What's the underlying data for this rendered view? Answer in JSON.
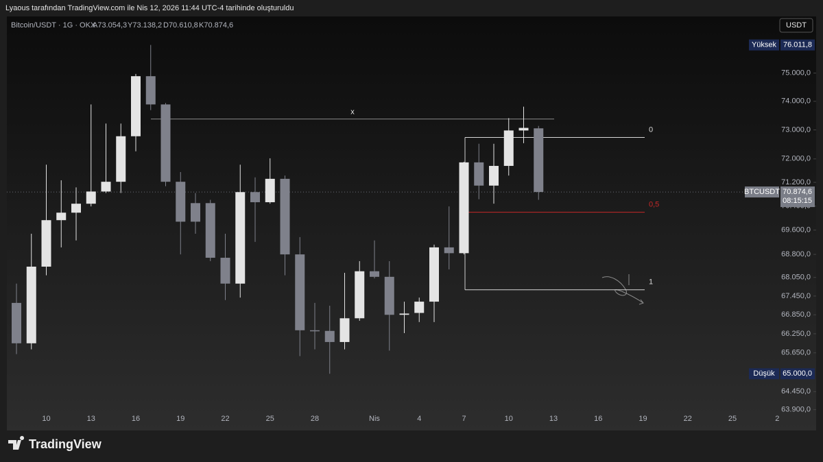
{
  "header": {
    "caption": "Lyaous tarafından TradingView.com ile Nis 12, 2026 11:44 UTC-4 tarihinde oluşturuldu"
  },
  "chart_data": {
    "type": "candlestick",
    "legend": {
      "symbol": "Bitcoin/USDT · 1G · OKX",
      "open_label": "A73.054,3",
      "high_label": "Y73.138,2",
      "low_label": "D70.610,8",
      "close_label": "K70.874,6"
    },
    "currency": "USDT",
    "categories": [
      null,
      null,
      "10",
      null,
      null,
      "13",
      null,
      null,
      "16",
      null,
      null,
      "19",
      null,
      null,
      "22",
      null,
      null,
      "25",
      null,
      null,
      "28",
      null,
      null,
      null,
      "Nis",
      null,
      null,
      "4",
      null,
      null,
      "7",
      null,
      null,
      "10",
      null,
      null,
      "13",
      null,
      null,
      "16",
      null,
      null,
      "19",
      null,
      null,
      "22",
      null,
      null,
      "25",
      null,
      null,
      "2"
    ],
    "open": [
      67230,
      65950,
      68400,
      69930,
      70180,
      70480,
      70890,
      71220,
      72780,
      74890,
      73890,
      71220,
      70500,
      70500,
      68690,
      67850,
      70870,
      70530,
      71320,
      68800,
      66360,
      66340,
      65990,
      66740,
      68250,
      68070,
      66850,
      66910,
      67270,
      69030,
      68840,
      71880,
      71090,
      71760,
      72980,
      73054.3,
      null,
      null,
      null,
      null,
      null,
      null,
      null,
      null,
      null,
      null,
      null,
      null,
      null,
      null,
      null,
      null
    ],
    "high": [
      67850,
      69480,
      71800,
      71270,
      71030,
      73890,
      73220,
      73220,
      74970,
      76011.8,
      73940,
      71550,
      70840,
      70610,
      69480,
      71800,
      71370,
      72020,
      71430,
      69370,
      67230,
      67140,
      68200,
      68580,
      69260,
      68580,
      67270,
      67400,
      69120,
      70390,
      71900,
      72520,
      72520,
      73410,
      73810,
      73138.2,
      null,
      null,
      null,
      null,
      null,
      null,
      null,
      null,
      null,
      null,
      null,
      null,
      null,
      null,
      null,
      null
    ],
    "low": [
      65610,
      65760,
      68120,
      69030,
      69260,
      70390,
      70840,
      70840,
      72260,
      73690,
      71070,
      68800,
      69480,
      68580,
      67320,
      67400,
      69210,
      70480,
      68120,
      65550,
      65760,
      65000,
      65760,
      66660,
      68020,
      65720,
      66270,
      66620,
      66620,
      68310,
      68800,
      70630,
      70480,
      71430,
      72540,
      70610.8,
      null,
      null,
      null,
      null,
      null,
      null,
      null,
      null,
      null,
      null,
      null,
      null,
      null,
      null,
      null,
      null
    ],
    "close": [
      65950,
      68400,
      69930,
      70180,
      70480,
      70890,
      71220,
      72780,
      74890,
      73890,
      71220,
      69880,
      69880,
      68690,
      67850,
      70870,
      70530,
      71320,
      68800,
      66360,
      66340,
      65990,
      66740,
      68250,
      68070,
      66850,
      66890,
      67270,
      69030,
      68840,
      71880,
      71090,
      71760,
      72980,
      73070,
      70874.6,
      null,
      null,
      null,
      null,
      null,
      null,
      null,
      null,
      null,
      null,
      null,
      null,
      null,
      null,
      null,
      null
    ],
    "up_color": "#e4e4e4",
    "down_color": "#7f818b",
    "log_scale": true,
    "ylim": [
      63850,
      77050
    ],
    "yticks": [
      {
        "value": 75000,
        "label": "75.000,0"
      },
      {
        "value": 74000,
        "label": "74.000,0"
      },
      {
        "value": 73000,
        "label": "73.000,0"
      },
      {
        "value": 72000,
        "label": "72.000,0"
      },
      {
        "value": 71200,
        "label": "71.200,0"
      },
      {
        "value": 70400,
        "label": "70.400,0"
      },
      {
        "value": 69600,
        "label": "69.600,0"
      },
      {
        "value": 68800,
        "label": "68.800,0"
      },
      {
        "value": 68050,
        "label": "68.050,0"
      },
      {
        "value": 67450,
        "label": "67.450,0"
      },
      {
        "value": 66850,
        "label": "66.850,0"
      },
      {
        "value": 66250,
        "label": "66.250,0"
      },
      {
        "value": 65650,
        "label": "65.650,0"
      },
      {
        "value": 64450,
        "label": "64.450,0"
      },
      {
        "value": 63900,
        "label": "63.900,0"
      }
    ],
    "high_marker": {
      "label": "Yüksek",
      "value": 76011.8,
      "value_label": "76.011,8"
    },
    "low_marker": {
      "label": "Düşük",
      "value": 65000,
      "value_label": "65.000,0"
    },
    "last_price": {
      "label": "BTCUSDT",
      "value": 70874.6,
      "value_label": "70.874,6",
      "countdown": "08:15:15"
    },
    "hline": {
      "label": "x",
      "value": 73380
    },
    "fib": {
      "high": 72740,
      "low": 67650,
      "levels": [
        {
          "value": 0,
          "label": "0"
        },
        {
          "value": 0.5,
          "label": "0,5"
        },
        {
          "value": 1,
          "label": "1"
        }
      ]
    }
  },
  "footer": {
    "brand": "TradingView"
  }
}
